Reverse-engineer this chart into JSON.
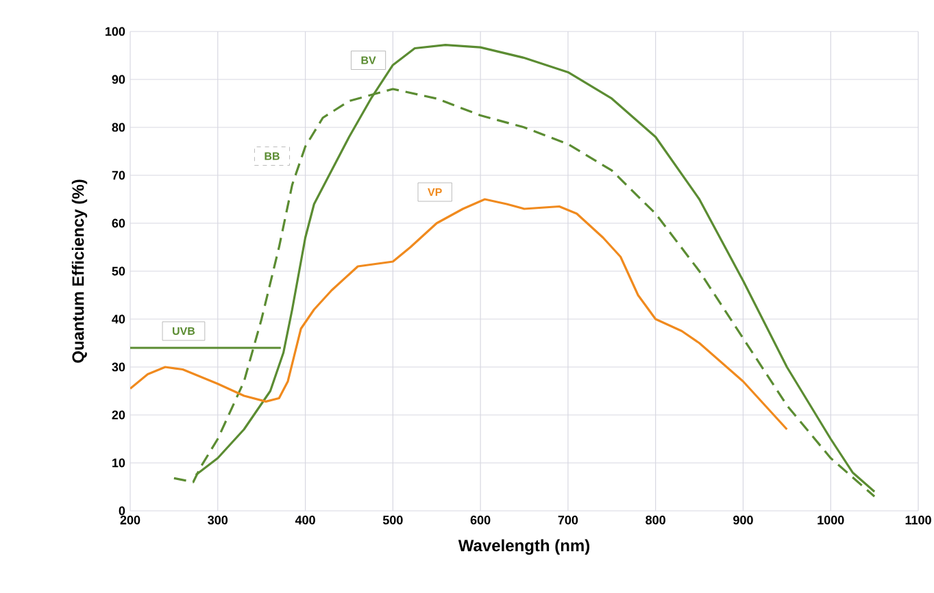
{
  "chart_data": {
    "type": "line",
    "xlabel": "Wavelength (nm)",
    "ylabel": "Quantum Efficiency (%)",
    "xlim": [
      200,
      1100
    ],
    "ylim": [
      0,
      100
    ],
    "xticks": [
      200,
      300,
      400,
      500,
      600,
      700,
      800,
      900,
      1000,
      1100
    ],
    "yticks": [
      0,
      10,
      20,
      30,
      40,
      50,
      60,
      70,
      80,
      90,
      100
    ],
    "grid": true,
    "marker": "none",
    "series": [
      {
        "name": "BV",
        "color": "#5b8c32",
        "line_style": "solid",
        "x": [
          275,
          300,
          330,
          360,
          375,
          385,
          400,
          410,
          430,
          450,
          475,
          500,
          525,
          560,
          600,
          650,
          700,
          750,
          800,
          850,
          900,
          950,
          1000,
          1025,
          1050
        ],
        "values": [
          7.5,
          11,
          17,
          25,
          33,
          42,
          57,
          64,
          71,
          78,
          86,
          93,
          96.5,
          97.2,
          96.7,
          94.5,
          91.5,
          86,
          78,
          65,
          48,
          30,
          15,
          8,
          4
        ]
      },
      {
        "name": "BB",
        "color": "#5b8c32",
        "line_style": "dashed",
        "x": [
          250,
          272,
          280,
          300,
          330,
          350,
          370,
          385,
          400,
          420,
          450,
          500,
          550,
          600,
          650,
          700,
          750,
          800,
          850,
          900,
          950,
          1000,
          1050
        ],
        "values": [
          6.8,
          6,
          9,
          15,
          27,
          40,
          55,
          68,
          76,
          82,
          85.5,
          88,
          86,
          82.5,
          80,
          76.5,
          71,
          62,
          50,
          36,
          22,
          11,
          3
        ]
      },
      {
        "name": "VP",
        "color": "#f08a1e",
        "line_style": "solid",
        "x": [
          200,
          220,
          240,
          260,
          300,
          330,
          355,
          370,
          380,
          395,
          410,
          430,
          460,
          500,
          520,
          550,
          580,
          605,
          630,
          650,
          690,
          710,
          740,
          760,
          780,
          800,
          830,
          850,
          900,
          950
        ],
        "values": [
          25.5,
          28.5,
          30,
          29.5,
          26.5,
          24,
          22.8,
          23.5,
          27,
          38,
          42,
          46,
          51,
          52,
          55,
          60,
          63,
          65,
          64,
          63,
          63.5,
          62,
          57,
          53,
          45,
          40,
          37.5,
          35,
          27,
          17
        ]
      },
      {
        "name": "UVB",
        "color": "#5b8c32",
        "line_style": "solid",
        "x": [
          200,
          372
        ],
        "values": [
          34,
          34
        ]
      }
    ]
  }
}
